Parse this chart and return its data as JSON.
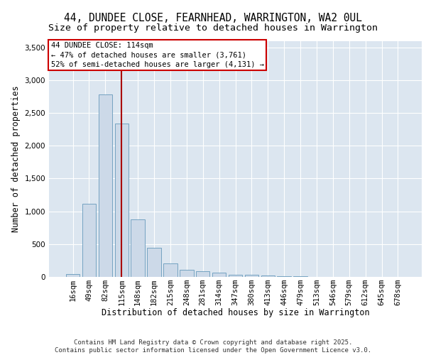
{
  "title_line1": "44, DUNDEE CLOSE, FEARNHEAD, WARRINGTON, WA2 0UL",
  "title_line2": "Size of property relative to detached houses in Warrington",
  "xlabel": "Distribution of detached houses by size in Warrington",
  "ylabel": "Number of detached properties",
  "categories": [
    "16sqm",
    "49sqm",
    "82sqm",
    "115sqm",
    "148sqm",
    "182sqm",
    "215sqm",
    "248sqm",
    "281sqm",
    "314sqm",
    "347sqm",
    "380sqm",
    "413sqm",
    "446sqm",
    "479sqm",
    "513sqm",
    "546sqm",
    "579sqm",
    "612sqm",
    "645sqm",
    "678sqm"
  ],
  "values": [
    40,
    1120,
    2780,
    2340,
    880,
    440,
    205,
    110,
    90,
    60,
    35,
    30,
    20,
    15,
    10,
    5,
    3,
    2,
    1,
    1,
    1
  ],
  "bar_color": "#ccd9e8",
  "bar_edge_color": "#6699bb",
  "background_color": "#dce6f0",
  "vline_x_index": 3,
  "vline_color": "#aa0000",
  "annotation_title": "44 DUNDEE CLOSE: 114sqm",
  "annotation_line1": "← 47% of detached houses are smaller (3,761)",
  "annotation_line2": "52% of semi-detached houses are larger (4,131) →",
  "annotation_box_facecolor": "#ffffff",
  "annotation_box_edgecolor": "#cc0000",
  "ylim": [
    0,
    3600
  ],
  "yticks": [
    0,
    500,
    1000,
    1500,
    2000,
    2500,
    3000,
    3500
  ],
  "footer_line1": "Contains HM Land Registry data © Crown copyright and database right 2025.",
  "footer_line2": "Contains public sector information licensed under the Open Government Licence v3.0.",
  "title_fontsize": 10.5,
  "subtitle_fontsize": 9.5,
  "axis_label_fontsize": 8.5,
  "tick_fontsize": 7.5,
  "annotation_fontsize": 7.5,
  "footer_fontsize": 6.5
}
